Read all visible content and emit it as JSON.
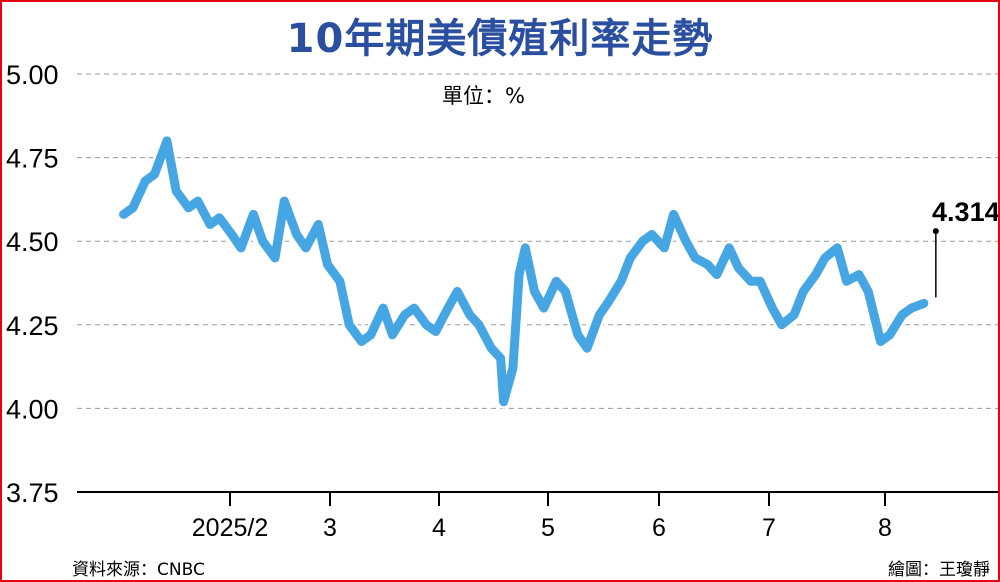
{
  "title": "10年期美債殖利率走勢",
  "unit_label": "單位：%",
  "source": "資料來源：CNBC",
  "credit": "繪圖：王瓊靜",
  "colors": {
    "title": "#2a4fa0",
    "line": "#45a6e3",
    "border": "#e60012",
    "grid": "#9a9a9a",
    "axis": "#000000"
  },
  "chart_data": {
    "type": "line",
    "title": "10年期美債殖利率走勢",
    "ylabel": "單位：%",
    "xlabel": "",
    "ylim": [
      3.75,
      5.0
    ],
    "y_ticks": [
      "5.00",
      "4.75",
      "4.50",
      "4.25",
      "4.00",
      "3.75"
    ],
    "x_ticks": [
      "2025/2",
      "3",
      "4",
      "5",
      "6",
      "7",
      "8"
    ],
    "grid": true,
    "legend": "none",
    "last_value_label": "4.314",
    "series": [
      {
        "x": [
          "2024-12-02",
          "2024-12-05",
          "2024-12-09",
          "2024-12-12",
          "2024-12-16",
          "2024-12-19",
          "2024-12-23",
          "2024-12-26",
          "2024-12-30",
          "2025-01-02",
          "2025-01-06",
          "2025-01-09",
          "2025-01-13",
          "2025-01-16",
          "2025-01-20",
          "2025-01-23",
          "2025-01-27",
          "2025-01-30",
          "2025-02-03",
          "2025-02-06",
          "2025-02-10",
          "2025-02-13",
          "2025-02-17",
          "2025-02-20",
          "2025-02-24",
          "2025-02-27",
          "2025-03-03",
          "2025-03-06",
          "2025-03-10",
          "2025-03-13",
          "2025-03-17",
          "2025-03-20",
          "2025-03-24",
          "2025-03-27",
          "2025-03-31",
          "2025-04-03",
          "2025-04-04",
          "2025-04-07",
          "2025-04-09",
          "2025-04-11",
          "2025-04-14",
          "2025-04-17",
          "2025-04-21",
          "2025-04-24",
          "2025-04-28",
          "2025-05-01",
          "2025-05-05",
          "2025-05-08",
          "2025-05-12",
          "2025-05-15",
          "2025-05-19",
          "2025-05-22",
          "2025-05-26",
          "2025-05-29",
          "2025-06-02",
          "2025-06-05",
          "2025-06-09",
          "2025-06-12",
          "2025-06-16",
          "2025-06-19",
          "2025-06-23",
          "2025-06-26",
          "2025-06-30",
          "2025-07-03",
          "2025-07-07",
          "2025-07-10",
          "2025-07-14",
          "2025-07-17",
          "2025-07-21",
          "2025-07-24",
          "2025-07-28",
          "2025-07-31",
          "2025-08-04",
          "2025-08-07",
          "2025-08-11",
          "2025-08-14",
          "2025-08-18"
        ],
        "values": [
          4.58,
          4.6,
          4.68,
          4.7,
          4.8,
          4.65,
          4.6,
          4.62,
          4.55,
          4.57,
          4.52,
          4.48,
          4.58,
          4.5,
          4.45,
          4.62,
          4.52,
          4.48,
          4.55,
          4.43,
          4.38,
          4.25,
          4.2,
          4.22,
          4.3,
          4.22,
          4.28,
          4.3,
          4.25,
          4.23,
          4.3,
          4.35,
          4.28,
          4.25,
          4.18,
          4.15,
          4.02,
          4.12,
          4.4,
          4.48,
          4.35,
          4.3,
          4.38,
          4.35,
          4.22,
          4.18,
          4.28,
          4.32,
          4.38,
          4.45,
          4.5,
          4.52,
          4.48,
          4.58,
          4.5,
          4.45,
          4.43,
          4.4,
          4.48,
          4.42,
          4.38,
          4.38,
          4.3,
          4.25,
          4.28,
          4.35,
          4.4,
          4.45,
          4.48,
          4.38,
          4.4,
          4.35,
          4.2,
          4.22,
          4.28,
          4.3,
          4.314
        ]
      }
    ]
  }
}
